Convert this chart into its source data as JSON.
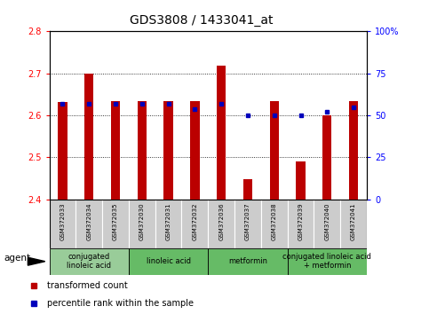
{
  "title": "GDS3808 / 1433041_at",
  "samples": [
    "GSM372033",
    "GSM372034",
    "GSM372035",
    "GSM372030",
    "GSM372031",
    "GSM372032",
    "GSM372036",
    "GSM372037",
    "GSM372038",
    "GSM372039",
    "GSM372040",
    "GSM372041"
  ],
  "bar_values": [
    2.632,
    2.7,
    2.633,
    2.633,
    2.633,
    2.633,
    2.718,
    2.449,
    2.633,
    2.49,
    2.6,
    2.633
  ],
  "dot_percentiles": [
    57,
    57,
    57,
    57,
    57,
    54,
    57,
    50,
    50,
    50,
    52,
    55
  ],
  "ylim": [
    2.4,
    2.8
  ],
  "y2lim": [
    0,
    100
  ],
  "bar_color": "#bb0000",
  "dot_color": "#0000bb",
  "bar_bottom": 2.4,
  "agents": [
    {
      "label": "conjugated\nlinoleic acid",
      "start": 0,
      "end": 3
    },
    {
      "label": "linoleic acid",
      "start": 3,
      "end": 6
    },
    {
      "label": "metformin",
      "start": 6,
      "end": 9
    },
    {
      "label": "conjugated linoleic acid\n+ metformin",
      "start": 9,
      "end": 12
    }
  ],
  "agent_colors": [
    "#99cc99",
    "#66bb66",
    "#66bb66",
    "#66bb66"
  ],
  "yticks_left": [
    2.4,
    2.5,
    2.6,
    2.7,
    2.8
  ],
  "yticks_right": [
    0,
    25,
    50,
    75,
    100
  ],
  "legend_items": [
    {
      "label": "transformed count",
      "color": "#bb0000"
    },
    {
      "label": "percentile rank within the sample",
      "color": "#0000bb"
    }
  ],
  "agent_label": "agent",
  "bg_sample": "#cccccc",
  "title_fontsize": 10,
  "tick_fontsize": 7,
  "sample_fontsize": 5,
  "agent_fontsize": 6,
  "legend_fontsize": 7
}
